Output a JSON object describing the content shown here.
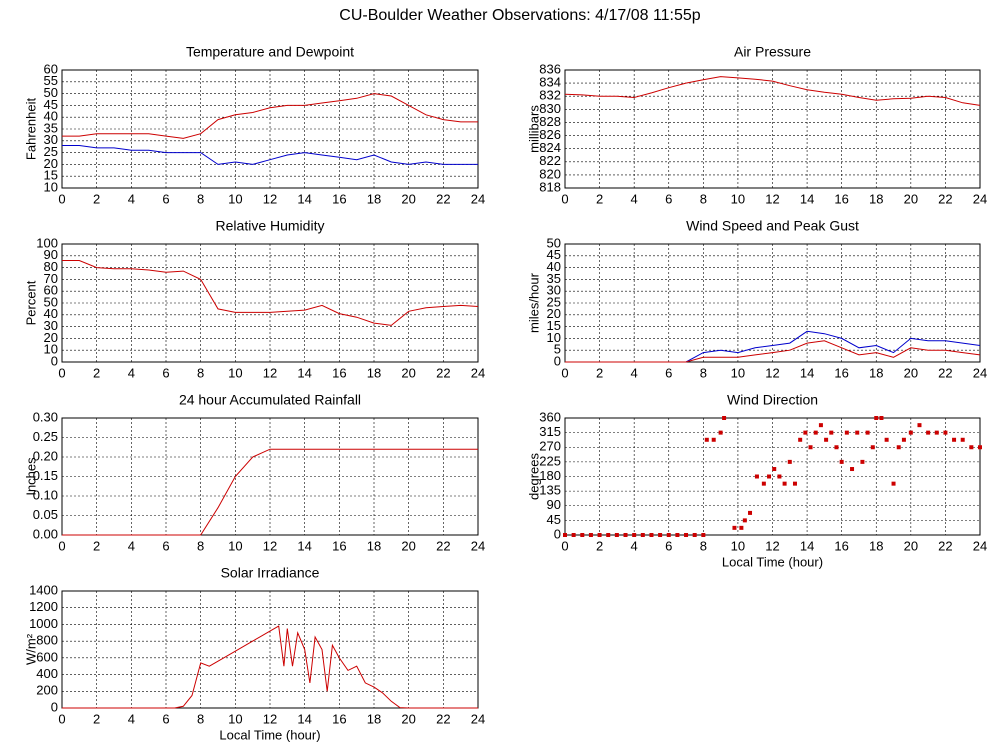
{
  "title": "CU-Boulder Weather Observations: 4/17/08 11:55p",
  "chart_data": [
    {
      "type": "line",
      "title": "Temperature and Dewpoint",
      "ylabel": "Fahrenheit",
      "x": [
        0,
        1,
        2,
        3,
        4,
        5,
        6,
        7,
        8,
        9,
        10,
        11,
        12,
        13,
        14,
        15,
        16,
        17,
        18,
        19,
        20,
        21,
        22,
        23,
        24
      ],
      "series": [
        {
          "color": "#cc0000",
          "values": [
            32,
            32,
            33,
            33,
            33,
            33,
            32,
            31,
            33,
            39,
            41,
            42,
            44,
            45,
            45,
            46,
            47,
            48,
            50,
            49,
            45,
            41,
            39,
            38,
            38
          ]
        },
        {
          "color": "#0000cc",
          "values": [
            28,
            28,
            27,
            27,
            26,
            26,
            25,
            25,
            25,
            20,
            21,
            20,
            22,
            24,
            25,
            24,
            23,
            22,
            24,
            21,
            20,
            21,
            20,
            20,
            20
          ]
        }
      ],
      "xlim": [
        0,
        24
      ],
      "xticks": [
        0,
        2,
        4,
        6,
        8,
        10,
        12,
        14,
        16,
        18,
        20,
        22,
        24
      ],
      "ylim": [
        10,
        60
      ],
      "yticks": [
        10,
        15,
        20,
        25,
        30,
        35,
        40,
        45,
        50,
        55,
        60
      ],
      "grid": true
    },
    {
      "type": "line",
      "title": "Air Pressure",
      "ylabel": "millibars",
      "x": [
        0,
        1,
        2,
        3,
        4,
        5,
        6,
        7,
        8,
        9,
        10,
        11,
        12,
        13,
        14,
        15,
        16,
        17,
        18,
        19,
        20,
        21,
        22,
        23,
        24
      ],
      "series": [
        {
          "color": "#cc0000",
          "values": [
            832.3,
            832.2,
            832,
            832,
            831.8,
            832.5,
            833.3,
            834,
            834.5,
            835,
            834.8,
            834.6,
            834.3,
            833.6,
            833,
            832.6,
            832.3,
            831.8,
            831.4,
            831.6,
            831.7,
            832,
            831.8,
            831,
            830.6
          ]
        }
      ],
      "xlim": [
        0,
        24
      ],
      "xticks": [
        0,
        2,
        4,
        6,
        8,
        10,
        12,
        14,
        16,
        18,
        20,
        22,
        24
      ],
      "ylim": [
        818,
        836
      ],
      "yticks": [
        818,
        820,
        822,
        824,
        826,
        828,
        830,
        832,
        834,
        836
      ],
      "grid": true
    },
    {
      "type": "line",
      "title": "Relative Humidity",
      "ylabel": "Percent",
      "x": [
        0,
        1,
        2,
        3,
        4,
        5,
        6,
        7,
        8,
        9,
        10,
        11,
        12,
        13,
        14,
        15,
        16,
        17,
        18,
        19,
        20,
        21,
        22,
        23,
        24
      ],
      "series": [
        {
          "color": "#cc0000",
          "values": [
            86,
            86,
            80,
            79,
            79,
            78,
            76,
            77,
            70,
            45,
            42,
            42,
            42,
            43,
            44,
            48,
            41,
            38,
            33,
            31,
            43,
            46,
            47,
            48,
            47
          ]
        }
      ],
      "xlim": [
        0,
        24
      ],
      "xticks": [
        0,
        2,
        4,
        6,
        8,
        10,
        12,
        14,
        16,
        18,
        20,
        22,
        24
      ],
      "ylim": [
        0,
        100
      ],
      "yticks": [
        0,
        10,
        20,
        30,
        40,
        50,
        60,
        70,
        80,
        90,
        100
      ],
      "grid": true
    },
    {
      "type": "line",
      "title": "Wind Speed and Peak Gust",
      "ylabel": "miles/hour",
      "x": [
        0,
        1,
        2,
        3,
        4,
        5,
        6,
        7,
        8,
        9,
        10,
        11,
        12,
        13,
        14,
        15,
        16,
        17,
        18,
        19,
        20,
        21,
        22,
        23,
        24
      ],
      "series": [
        {
          "color": "#0000cc",
          "values": [
            0,
            0,
            0,
            0,
            0,
            0,
            0,
            0,
            4,
            5,
            4,
            6,
            7,
            8,
            13,
            12,
            10,
            6,
            7,
            4,
            10,
            9,
            9,
            8,
            7
          ]
        },
        {
          "color": "#cc0000",
          "values": [
            0,
            0,
            0,
            0,
            0,
            0,
            0,
            0,
            2,
            2,
            2,
            3,
            4,
            5,
            8,
            9,
            6,
            3,
            4,
            2,
            6,
            5,
            5,
            4,
            3
          ]
        }
      ],
      "xlim": [
        0,
        24
      ],
      "xticks": [
        0,
        2,
        4,
        6,
        8,
        10,
        12,
        14,
        16,
        18,
        20,
        22,
        24
      ],
      "ylim": [
        0,
        50
      ],
      "yticks": [
        0,
        5,
        10,
        15,
        20,
        25,
        30,
        35,
        40,
        45,
        50
      ],
      "grid": true
    },
    {
      "type": "line",
      "title": "24 hour Accumulated Rainfall",
      "ylabel": "Inches",
      "x": [
        0,
        2,
        4,
        6,
        8,
        9,
        10,
        11,
        12,
        14,
        16,
        18,
        20,
        22,
        24
      ],
      "series": [
        {
          "color": "#cc0000",
          "values": [
            0,
            0,
            0,
            0,
            0,
            0.07,
            0.15,
            0.2,
            0.22,
            0.22,
            0.22,
            0.22,
            0.22,
            0.22,
            0.22
          ]
        }
      ],
      "xlim": [
        0,
        24
      ],
      "xticks": [
        0,
        2,
        4,
        6,
        8,
        10,
        12,
        14,
        16,
        18,
        20,
        22,
        24
      ],
      "ylim": [
        0,
        0.3
      ],
      "yticks": [
        {
          "value": 0,
          "label": "0.00"
        },
        {
          "value": 0.05,
          "label": "0.05"
        },
        {
          "value": 0.1,
          "label": "0.10"
        },
        {
          "value": 0.15,
          "label": "0.15"
        },
        {
          "value": 0.2,
          "label": "0.20"
        },
        {
          "value": 0.25,
          "label": "0.25"
        },
        {
          "value": 0.3,
          "label": "0.30"
        }
      ],
      "grid": true
    },
    {
      "type": "scatter",
      "title": "Wind Direction",
      "ylabel": "degrees",
      "xlabel": "Local Time (hour)",
      "x": [
        0,
        0.5,
        1,
        1.5,
        2,
        2.5,
        3,
        3.5,
        4,
        4.5,
        5,
        5.5,
        6,
        6.5,
        7,
        7.5,
        8,
        8.2,
        8.6,
        9,
        9.2,
        9.8,
        10.2,
        10.4,
        10.7,
        11.1,
        11.5,
        11.8,
        12.1,
        12.4,
        12.7,
        13,
        13.3,
        13.6,
        13.9,
        14.2,
        14.5,
        14.8,
        15.1,
        15.4,
        15.7,
        16,
        16.3,
        16.6,
        16.9,
        17.2,
        17.5,
        17.8,
        18,
        18.3,
        18.6,
        19,
        19.3,
        19.6,
        20,
        20.5,
        21,
        21.5,
        22,
        22.5,
        23,
        23.5,
        24
      ],
      "series": [
        {
          "color": "#cc0000",
          "values": [
            0,
            0,
            0,
            0,
            0,
            0,
            0,
            0,
            0,
            0,
            0,
            0,
            0,
            0,
            0,
            0,
            0,
            293,
            293,
            315,
            360,
            22,
            22,
            45,
            68,
            180,
            158,
            180,
            203,
            180,
            158,
            225,
            158,
            293,
            315,
            270,
            315,
            338,
            293,
            315,
            270,
            225,
            315,
            203,
            315,
            225,
            315,
            270,
            360,
            360,
            293,
            158,
            270,
            293,
            315,
            338,
            315,
            315,
            315,
            293,
            293,
            270,
            270
          ]
        }
      ],
      "xlim": [
        0,
        24
      ],
      "xticks": [
        0,
        2,
        4,
        6,
        8,
        10,
        12,
        14,
        16,
        18,
        20,
        22,
        24
      ],
      "ylim": [
        0,
        360
      ],
      "yticks": [
        0,
        45,
        90,
        135,
        180,
        225,
        270,
        315,
        360
      ],
      "grid": true
    },
    {
      "type": "line",
      "title": "Solar Irradiance",
      "ylabel": "W/m²",
      "xlabel": "Local Time (hour)",
      "x": [
        0,
        2,
        4,
        6,
        6.5,
        7,
        7.5,
        8,
        8.5,
        9,
        10,
        11,
        12,
        12.5,
        12.8,
        13,
        13.3,
        13.6,
        14,
        14.3,
        14.6,
        15,
        15.3,
        15.6,
        16,
        16.5,
        17,
        17.5,
        18,
        18.5,
        19,
        19.5,
        20,
        22,
        24
      ],
      "series": [
        {
          "color": "#cc0000",
          "values": [
            0,
            0,
            0,
            0,
            0,
            20,
            150,
            540,
            500,
            560,
            680,
            800,
            920,
            980,
            500,
            950,
            500,
            900,
            700,
            300,
            850,
            700,
            200,
            750,
            600,
            450,
            500,
            300,
            250,
            180,
            80,
            5,
            0,
            0,
            0
          ]
        }
      ],
      "xlim": [
        0,
        24
      ],
      "xticks": [
        0,
        2,
        4,
        6,
        8,
        10,
        12,
        14,
        16,
        18,
        20,
        22,
        24
      ],
      "ylim": [
        0,
        1400
      ],
      "yticks": [
        0,
        200,
        400,
        600,
        800,
        1000,
        1200,
        1400
      ],
      "grid": true
    }
  ]
}
